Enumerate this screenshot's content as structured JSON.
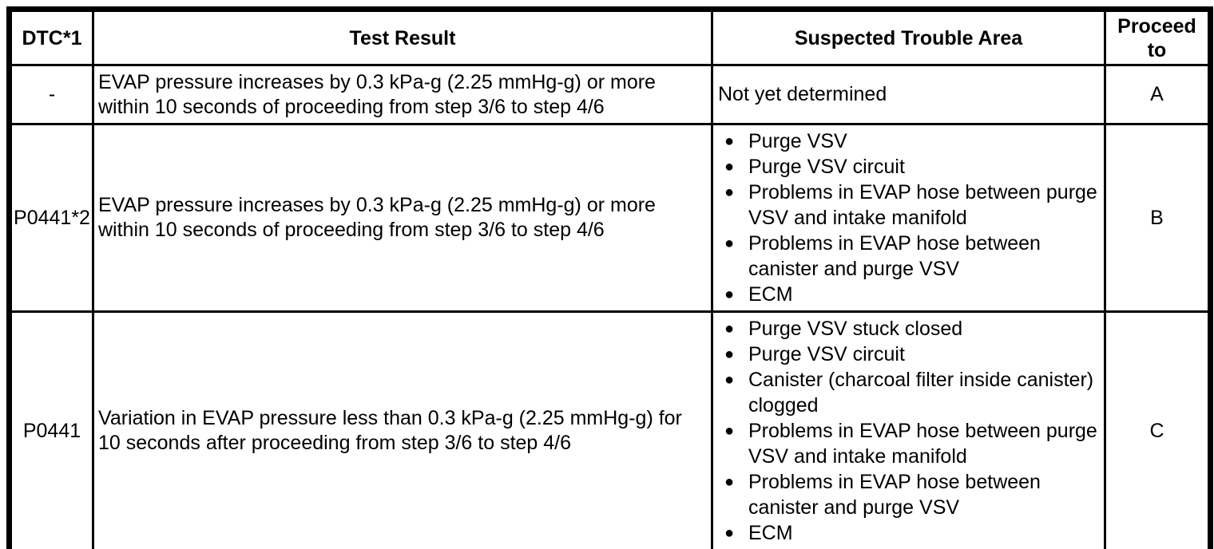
{
  "colors": {
    "border": "#000000",
    "background": "#ffffff",
    "text": "#000000"
  },
  "table": {
    "headers": [
      "DTC*1",
      "Test Result",
      "Suspected Trouble Area",
      "Proceed to"
    ],
    "rows": [
      {
        "dtc": "-",
        "test_result": "EVAP pressure increases by 0.3 kPa-g (2.25 mmHg-g) or more within 10 seconds of proceeding from step 3/6 to step 4/6",
        "trouble_area_text": "Not yet determined",
        "trouble_area_bullets": [],
        "proceed_to": "A"
      },
      {
        "dtc": "P0441*2",
        "test_result": "EVAP pressure increases by 0.3 kPa-g (2.25 mmHg-g) or more within 10 seconds of proceeding from step 3/6 to step 4/6",
        "trouble_area_text": "",
        "trouble_area_bullets": [
          "Purge VSV",
          "Purge VSV circuit",
          "Problems in EVAP hose between purge VSV and intake manifold",
          "Problems in EVAP hose between canister and purge VSV",
          "ECM"
        ],
        "proceed_to": "B"
      },
      {
        "dtc": "P0441",
        "test_result": "Variation in EVAP pressure less than 0.3 kPa-g (2.25 mmHg-g) for 10 seconds after proceeding from step 3/6 to step 4/6",
        "trouble_area_text": "",
        "trouble_area_bullets": [
          "Purge VSV stuck closed",
          "Purge VSV circuit",
          "Canister (charcoal filter inside canister) clogged",
          "Problems in EVAP hose between purge VSV and intake manifold",
          "Problems in EVAP hose between canister and purge VSV",
          "ECM"
        ],
        "proceed_to": "C"
      }
    ]
  }
}
